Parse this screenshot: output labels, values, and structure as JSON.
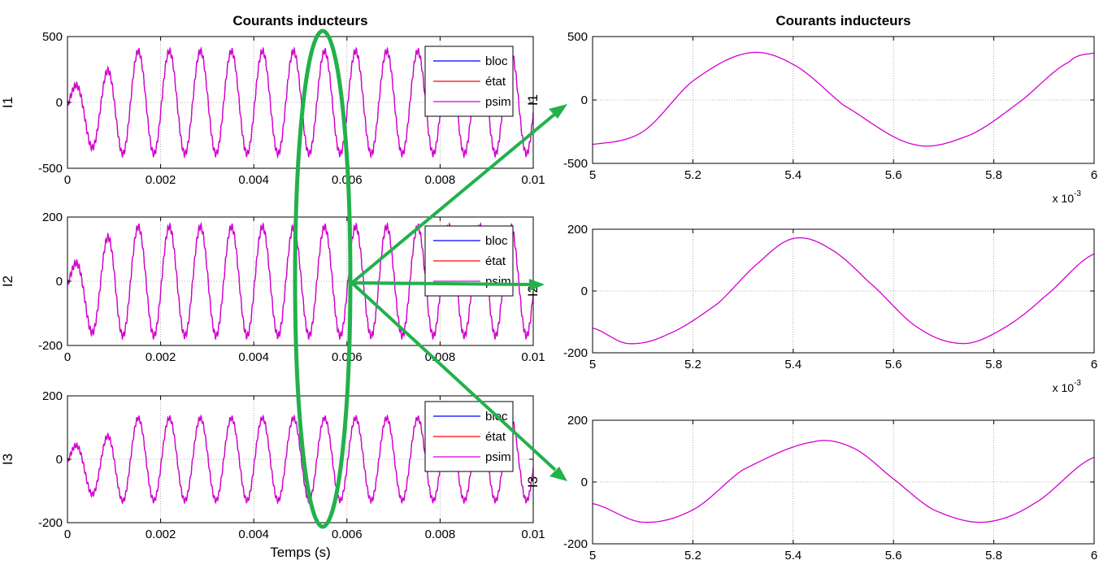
{
  "colors": {
    "bloc": "#0000ff",
    "etat": "#ff0000",
    "psim": "#d400d4",
    "annotation": "#22b14c"
  },
  "chart_data": [
    {
      "type": "line",
      "title": "Courants inducteurs",
      "ylabel": "I1",
      "xlabel": "",
      "xlim": [
        0,
        0.01
      ],
      "ylim": [
        -500,
        500
      ],
      "xticks": [
        "0",
        "0.002",
        "0.004",
        "0.006",
        "0.008",
        "0.01"
      ],
      "yticks": [
        "-500",
        "0",
        "500"
      ],
      "legend": [
        "bloc",
        "état",
        "psim"
      ],
      "waveform": {
        "amplitude": 390,
        "frequency_hz": 1500,
        "startup_ms": 1.2
      }
    },
    {
      "type": "line",
      "title": "",
      "ylabel": "I2",
      "xlabel": "",
      "xlim": [
        0,
        0.01
      ],
      "ylim": [
        -200,
        200
      ],
      "xticks": [
        "0",
        "0.002",
        "0.004",
        "0.006",
        "0.008",
        "0.01"
      ],
      "yticks": [
        "-200",
        "0",
        "200"
      ],
      "legend": [
        "bloc",
        "état",
        "psim"
      ],
      "waveform": {
        "amplitude": 170,
        "frequency_hz": 1500,
        "startup_ms": 1.0
      }
    },
    {
      "type": "line",
      "title": "",
      "ylabel": "I3",
      "xlabel": "Temps (s)",
      "xlim": [
        0,
        0.01
      ],
      "ylim": [
        -200,
        200
      ],
      "xticks": [
        "0",
        "0.002",
        "0.004",
        "0.006",
        "0.008",
        "0.01"
      ],
      "yticks": [
        "-200",
        "0",
        "200"
      ],
      "legend": [
        "bloc",
        "état",
        "psim"
      ],
      "waveform": {
        "amplitude": 130,
        "frequency_hz": 1500,
        "startup_ms": 1.3
      }
    },
    {
      "type": "line",
      "title": "Courants inducteurs",
      "ylabel": "I1",
      "xlabel": "",
      "xlim": [
        5,
        6
      ],
      "ylim": [
        -500,
        500
      ],
      "x_multiplier": "x 10-3",
      "xticks": [
        "5",
        "5.2",
        "5.4",
        "5.6",
        "5.8",
        "6"
      ],
      "yticks": [
        "-500",
        "0",
        "500"
      ],
      "series": [
        {
          "name": "psim",
          "x": [
            5.0,
            5.1,
            5.2,
            5.31,
            5.4,
            5.5,
            5.64,
            5.75,
            5.85,
            5.95,
            6.0
          ],
          "y": [
            -350,
            -250,
            150,
            370,
            280,
            -40,
            -350,
            -280,
            -20,
            300,
            370
          ]
        }
      ]
    },
    {
      "type": "line",
      "title": "",
      "ylabel": "I2",
      "xlabel": "",
      "xlim": [
        5,
        6
      ],
      "ylim": [
        -200,
        200
      ],
      "x_multiplier": "x 10-3",
      "xticks": [
        "5",
        "5.2",
        "5.4",
        "5.6",
        "5.8",
        "6"
      ],
      "yticks": [
        "-200",
        "0",
        "200"
      ],
      "series": [
        {
          "name": "psim",
          "x": [
            5.0,
            5.07,
            5.15,
            5.25,
            5.33,
            5.4,
            5.47,
            5.55,
            5.65,
            5.74,
            5.82,
            5.9,
            6.0
          ],
          "y": [
            -120,
            -170,
            -140,
            -40,
            90,
            170,
            140,
            30,
            -120,
            -170,
            -120,
            -20,
            120
          ]
        }
      ]
    },
    {
      "type": "line",
      "title": "",
      "ylabel": "I3",
      "xlabel": "",
      "xlim": [
        5,
        6
      ],
      "ylim": [
        -200,
        200
      ],
      "xticks": [
        "5",
        "5.2",
        "5.4",
        "5.6",
        "5.8",
        "6"
      ],
      "yticks": [
        "-200",
        "0",
        "200"
      ],
      "series": [
        {
          "name": "psim",
          "x": [
            5.0,
            5.1,
            5.2,
            5.3,
            5.44,
            5.52,
            5.6,
            5.68,
            5.78,
            5.88,
            6.0
          ],
          "y": [
            -70,
            -130,
            -90,
            40,
            130,
            110,
            10,
            -90,
            -130,
            -70,
            80
          ]
        }
      ]
    }
  ]
}
